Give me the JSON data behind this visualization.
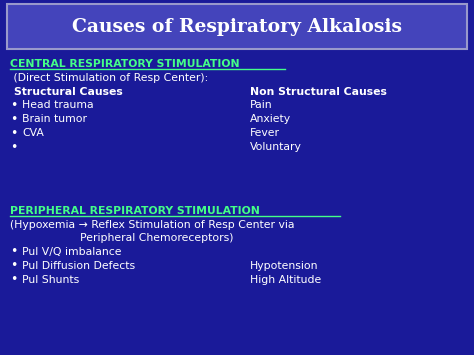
{
  "title": "Causes of Respiratory Alkalosis",
  "title_color": "#FFFFFF",
  "title_bg_color": "#4444BB",
  "title_border_color": "#9999CC",
  "bg_color": "#1A1A99",
  "section1_header": "CENTRAL RESPIRATORY STIMULATION",
  "section1_header_color": "#44FF88",
  "section1_sub": " (Direct Stimulation of Resp Center):",
  "section1_sub_color": "#FFFFFF",
  "col1_header": "Structural Causes",
  "col2_header": "Non Structural Causes",
  "col_header_color": "#FFFFFF",
  "col1_items": [
    "Head trauma",
    "Brain tumor",
    "CVA",
    ""
  ],
  "col2_items": [
    "Pain",
    "Anxiety",
    "Fever",
    "Voluntary"
  ],
  "items_color": "#FFFFFF",
  "section2_header": "PERIPHERAL RESPIRATORY STIMULATION",
  "section2_header_color": "#44FF88",
  "section2_sub1": "(Hypoxemia → Reflex Stimulation of Resp Center via",
  "section2_sub2": "                    Peripheral Chemoreceptors)",
  "section2_sub_color": "#FFFFFF",
  "col3_items": [
    "Pul V/Q imbalance",
    "Pul Diffusion Defects",
    "Pul Shunts"
  ],
  "col4_items": [
    "",
    "Hypotension",
    "High Altitude"
  ],
  "bullet_color": "#FFFFFF",
  "figw": 4.74,
  "figh": 3.55,
  "dpi": 100
}
